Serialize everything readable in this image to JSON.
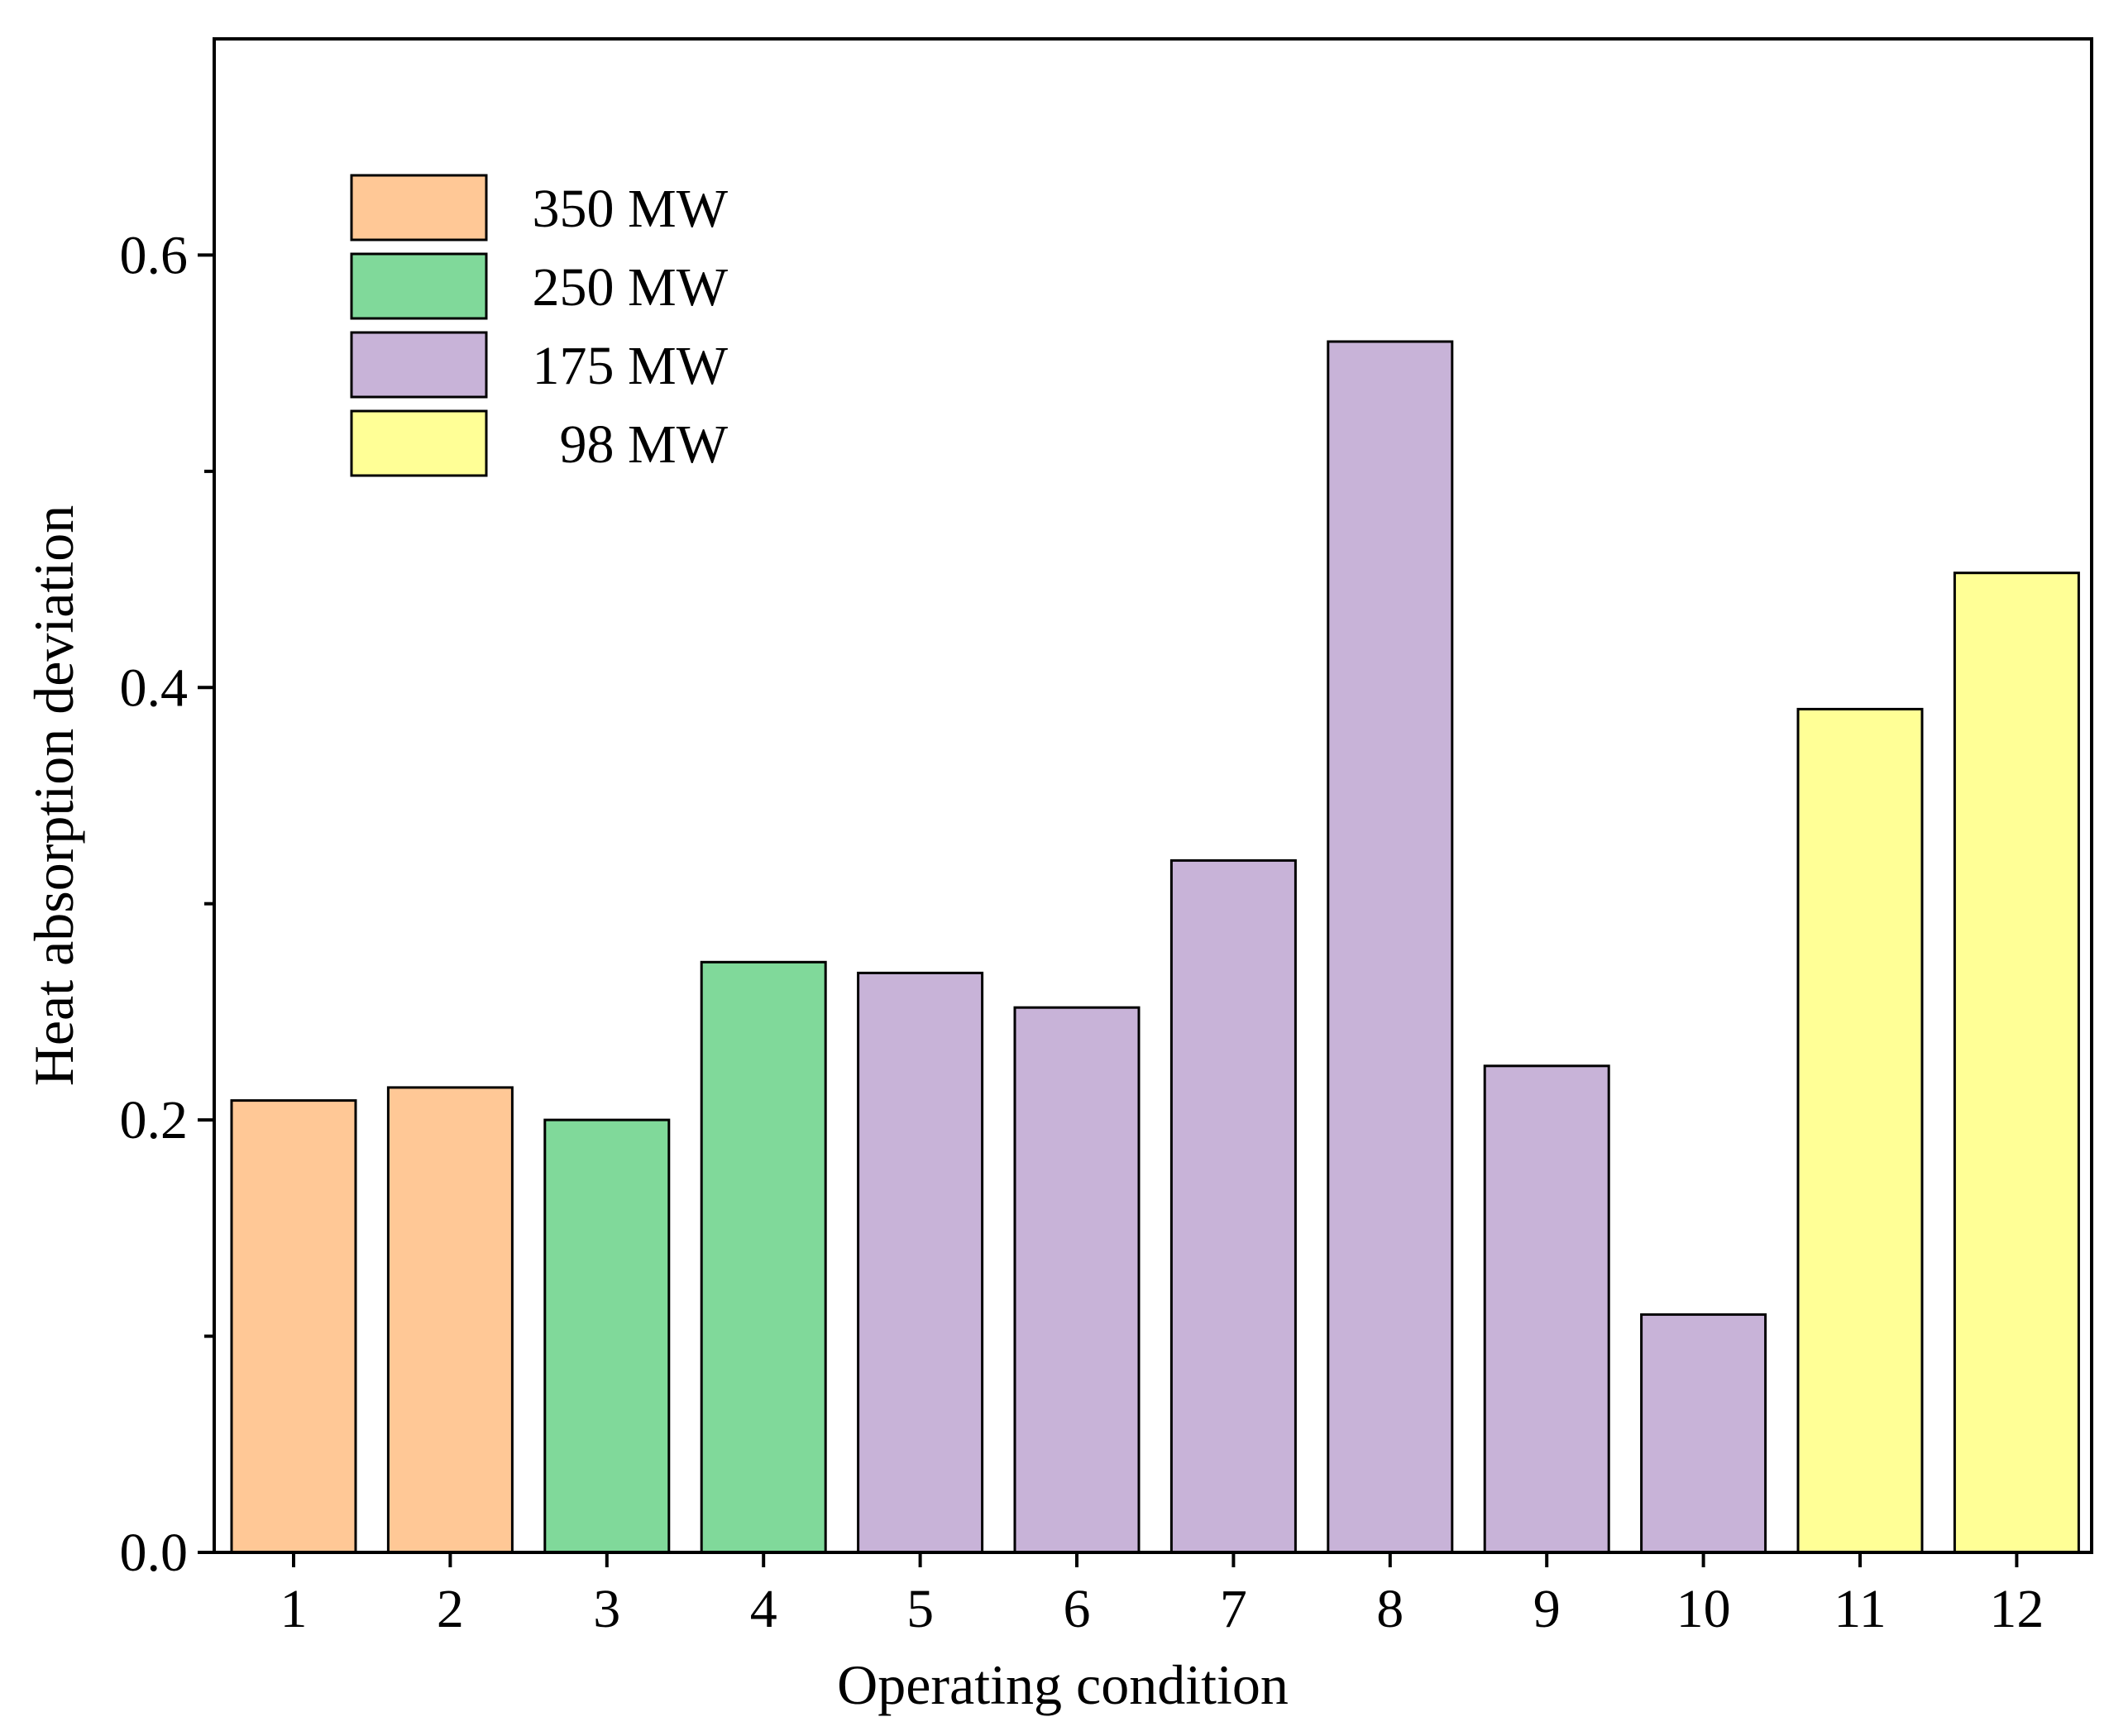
{
  "chart_data": {
    "type": "bar",
    "title": "",
    "xlabel": "Operating condition",
    "ylabel": "Heat absorption deviation",
    "ylim": [
      0,
      0.7
    ],
    "yticks": [
      "0.0",
      "0.2",
      "0.4",
      "0.6"
    ],
    "categories": [
      "1",
      "2",
      "3",
      "4",
      "5",
      "6",
      "7",
      "8",
      "9",
      "10",
      "11",
      "12"
    ],
    "values": [
      0.209,
      0.215,
      0.2,
      0.273,
      0.268,
      0.252,
      0.32,
      0.56,
      0.225,
      0.11,
      0.39,
      0.453
    ],
    "groups": [
      "350 MW",
      "350 MW",
      "250 MW",
      "250 MW",
      "175 MW",
      "175 MW",
      "175 MW",
      "175 MW",
      "175 MW",
      "175 MW",
      "98 MW",
      "98 MW"
    ],
    "legend": [
      {
        "label": "350 MW",
        "color": "#FFC896"
      },
      {
        "label": "250 MW",
        "color": "#80D99A"
      },
      {
        "label": "175 MW",
        "color": "#C8B3D8"
      },
      {
        "label": "98 MW",
        "color": "#FFFF96"
      }
    ],
    "legend_position": "top-left",
    "grid": false
  }
}
